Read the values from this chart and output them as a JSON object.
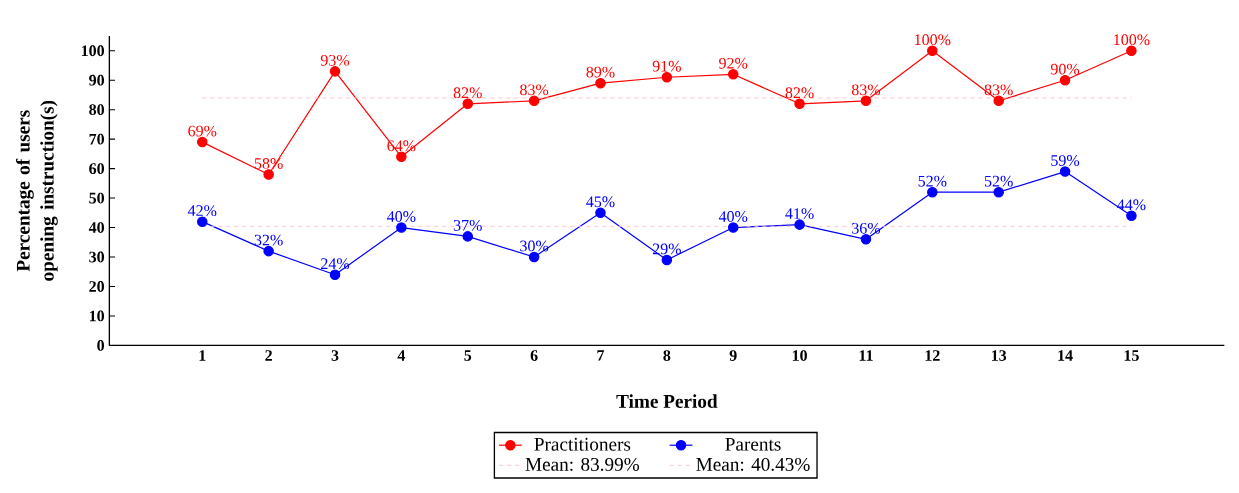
{
  "chart_data": {
    "type": "line",
    "xlabel": "Time Period",
    "ylabel": "Percentage of users opening instruction(s)",
    "x": [
      1,
      2,
      3,
      4,
      5,
      6,
      7,
      8,
      9,
      10,
      11,
      12,
      13,
      14,
      15
    ],
    "series": [
      {
        "name": "Practitioners",
        "color": "#ff0000",
        "values": [
          69,
          58,
          93,
          64,
          82,
          83,
          89,
          91,
          92,
          82,
          83,
          100,
          83,
          90,
          100
        ],
        "value_labels": [
          "69%",
          "58%",
          "93%",
          "64%",
          "82%",
          "83%",
          "89%",
          "91%",
          "92%",
          "82%",
          "83%",
          "100%",
          "83%",
          "90%",
          "100%"
        ]
      },
      {
        "name": "Parents",
        "color": "#0000ff",
        "values": [
          42,
          32,
          24,
          40,
          37,
          30,
          45,
          29,
          40,
          41,
          36,
          52,
          52,
          59,
          44
        ],
        "value_labels": [
          "42%",
          "32%",
          "24%",
          "40%",
          "37%",
          "30%",
          "45%",
          "29%",
          "40%",
          "41%",
          "36%",
          "52%",
          "52%",
          "59%",
          "44%"
        ]
      }
    ],
    "ref_lines": [
      {
        "axis": "y",
        "value": 83.99,
        "label": "Mean: 83.99%",
        "color": "#ffc0cb",
        "line_style": "dashed"
      },
      {
        "axis": "y",
        "value": 40.43,
        "label": "Mean: 40.43%",
        "color": "#ffc0cb",
        "line_style": "dashed"
      }
    ],
    "xlim": [
      -0.4,
      16.4
    ],
    "xticks": [
      1,
      2,
      3,
      4,
      5,
      6,
      7,
      8,
      9,
      10,
      11,
      12,
      13,
      14,
      15
    ],
    "ylim": [
      0,
      105
    ],
    "yticks": [
      0,
      10,
      20,
      30,
      40,
      50,
      60,
      70,
      80,
      90,
      100
    ],
    "grid": false,
    "legend": "bottom",
    "marker": "circle",
    "line_style": "solid"
  }
}
